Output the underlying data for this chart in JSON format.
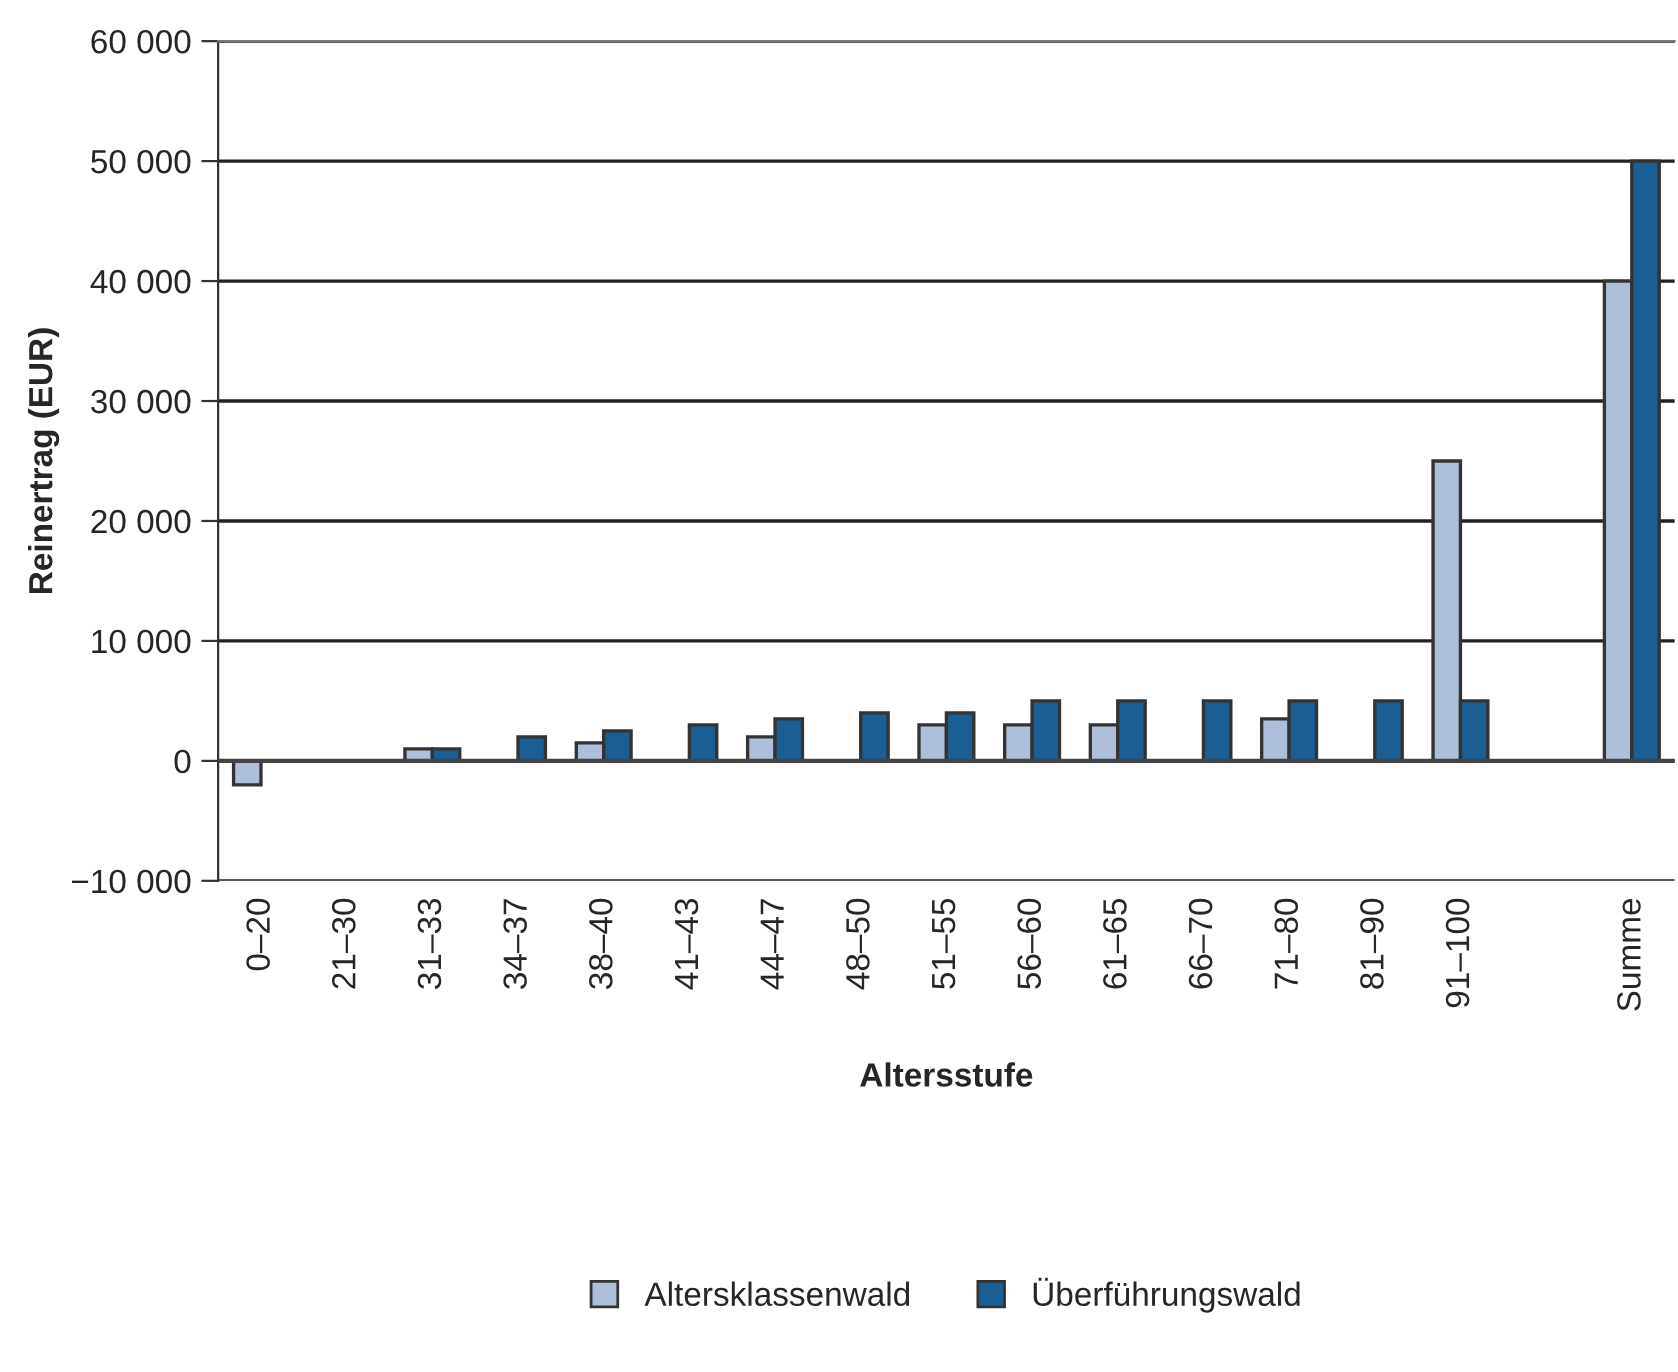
{
  "chart_data": {
    "type": "bar",
    "xlabel": "Altersstufe",
    "ylabel": "Reinertrag (EUR)",
    "categories": [
      "0–20",
      "21–30",
      "31–33",
      "34–37",
      "38–40",
      "41–43",
      "44–47",
      "48–50",
      "51–55",
      "56–60",
      "61–65",
      "66–70",
      "71–80",
      "81–90",
      "91–100",
      null,
      "Summe"
    ],
    "series": [
      {
        "name": "Altersklassenwald",
        "color": "#adbfdb",
        "values": [
          -2000,
          null,
          1000,
          null,
          1500,
          null,
          2000,
          null,
          3000,
          3000,
          3000,
          null,
          3500,
          null,
          25000,
          null,
          40000
        ]
      },
      {
        "name": "Überführungswald",
        "color": "#1b5e94",
        "values": [
          null,
          null,
          1000,
          2000,
          2500,
          3000,
          3500,
          4000,
          4000,
          5000,
          5000,
          5000,
          5000,
          5000,
          5000,
          null,
          50000
        ]
      }
    ],
    "ylim": [
      -10000,
      60000
    ],
    "yticks": [
      {
        "value": -10000,
        "label": "−10 000"
      },
      {
        "value": 0,
        "label": "0"
      },
      {
        "value": 10000,
        "label": "10 000"
      },
      {
        "value": 20000,
        "label": "20 000"
      },
      {
        "value": 30000,
        "label": "30 000"
      },
      {
        "value": 40000,
        "label": "40 000"
      },
      {
        "value": 50000,
        "label": "50 000"
      },
      {
        "value": 60000,
        "label": "60 000"
      }
    ],
    "grid": "y",
    "legend": "bottom"
  }
}
